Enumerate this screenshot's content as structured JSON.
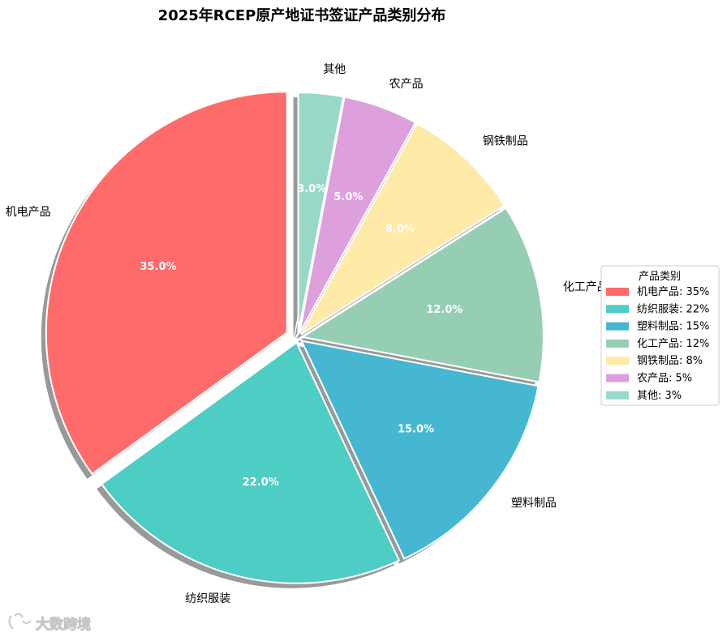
{
  "chart_data": {
    "type": "pie",
    "title": "2025年RCEP原产地证书签证产品类别分布",
    "categories": [
      "机电产品",
      "纺织服装",
      "塑料制品",
      "化工产品",
      "钢铁制品",
      "农产品",
      "其他"
    ],
    "values": [
      35,
      22,
      15,
      12,
      8,
      5,
      3
    ],
    "percent_labels": [
      "35.0%",
      "22.0%",
      "15.0%",
      "12.0%",
      "8.0%",
      "5.0%",
      "3.0%"
    ],
    "colors": [
      "#FF6B6B",
      "#4ECDC4",
      "#45B7D1",
      "#96CEB4",
      "#FFEAA7",
      "#DDA0DD",
      "#98D8C8"
    ],
    "explode": [
      0.05,
      0.02,
      0.02,
      0.02,
      0.02,
      0.02,
      0.02
    ],
    "start_angle": 90,
    "direction": "counterclockwise",
    "shadow": true,
    "legend": {
      "title": "产品类别",
      "placement": "center-right",
      "entries": [
        "机电产品: 35%",
        "纺织服装: 22%",
        "塑料制品: 15%",
        "化工产品: 12%",
        "钢铁制品: 8%",
        "农产品: 5%",
        "其他: 3%"
      ]
    }
  },
  "watermark": {
    "text": "大数跨境"
  }
}
